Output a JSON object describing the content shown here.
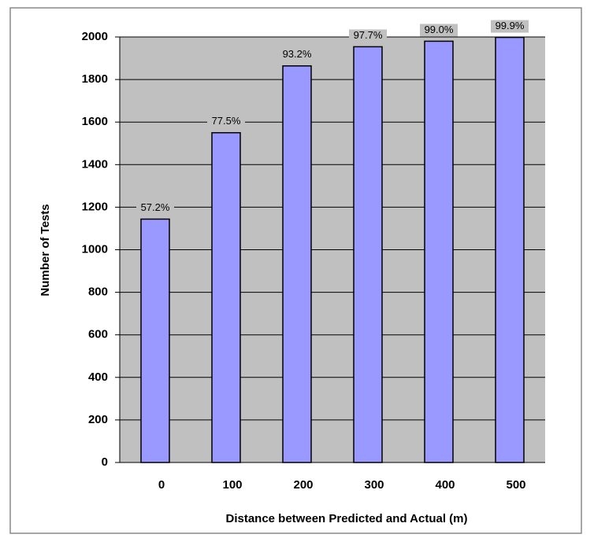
{
  "chart_data": {
    "type": "bar",
    "x_label": "Distance between Predicted and Actual (m)",
    "y_label": "Number of Tests",
    "categories": [
      "0",
      "100",
      "200",
      "300",
      "400",
      "500"
    ],
    "values": [
      1144,
      1550,
      1864,
      1954,
      1980,
      1998
    ],
    "bar_labels": [
      "57.2%",
      "77.5%",
      "93.2%",
      "97.7%",
      "99.0%",
      "99.9%"
    ],
    "color": "#9999ff",
    "ylim": [
      0,
      2000
    ],
    "yticks": [
      0,
      200,
      400,
      600,
      800,
      1000,
      1200,
      1400,
      1600,
      1800,
      2000
    ],
    "grid": true
  }
}
